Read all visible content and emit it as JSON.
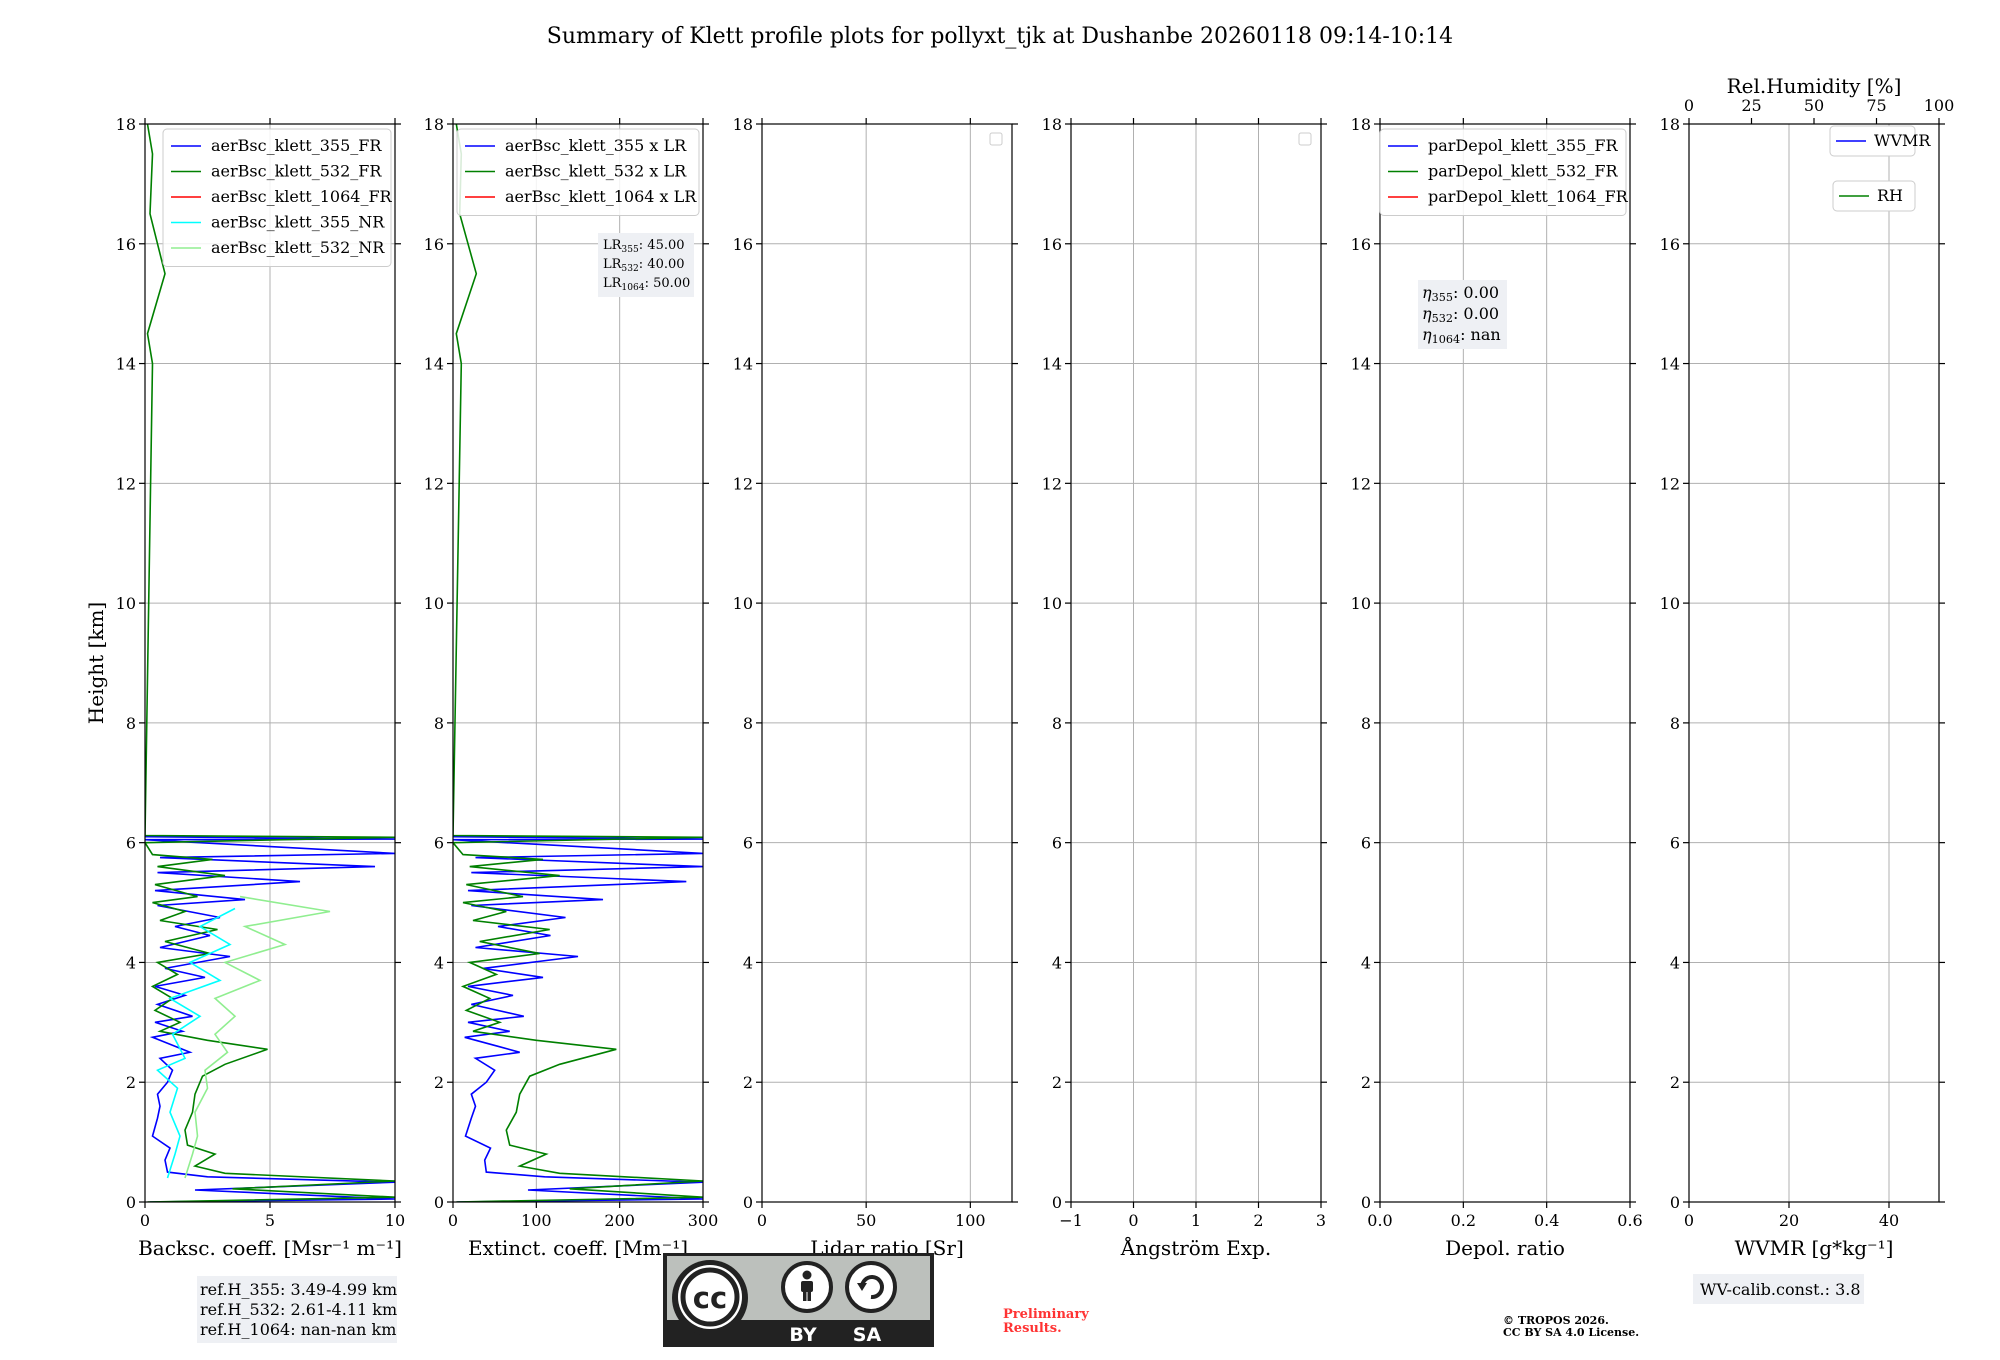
{
  "title": "Summary of Klett profile plots for pollyxt_tjk at Dushanbe 20260118 09:14-10:14",
  "colors": {
    "b355": "#0000ff",
    "g532": "#008000",
    "r1064": "#ff0000",
    "c355nr": "#00ffff",
    "lg532nr": "#90ee90",
    "grid": "#b0b0b0",
    "box_bg": "#eef0f4",
    "prelim": "#ff0000"
  },
  "chart_data": [
    {
      "type": "line",
      "id": "backscatter",
      "xlabel": "Backsc. coeff. [Msr⁻¹ m⁻¹]",
      "ylabel": "Height [km]",
      "xlim": [
        0,
        10
      ],
      "ylim": [
        0,
        18
      ],
      "xticks": [
        "0",
        "5",
        "10"
      ],
      "yticks": [
        "0",
        "2",
        "4",
        "6",
        "8",
        "10",
        "12",
        "14",
        "16",
        "18"
      ],
      "grid": true,
      "legend_position": "top-right",
      "series": [
        {
          "name": "aerBsc_klett_355_FR",
          "color_key": "b355",
          "points": [
            [
              0.2,
              0.0
            ],
            [
              10,
              0.05
            ],
            [
              2.0,
              0.2
            ],
            [
              10,
              0.33
            ],
            [
              2.5,
              0.42
            ],
            [
              0.9,
              0.5
            ],
            [
              0.8,
              0.7
            ],
            [
              1.0,
              0.9
            ],
            [
              0.3,
              1.1
            ],
            [
              0.5,
              1.4
            ],
            [
              0.6,
              1.6
            ],
            [
              0.5,
              1.8
            ],
            [
              0.9,
              2.0
            ],
            [
              1.1,
              2.2
            ],
            [
              0.6,
              2.4
            ],
            [
              1.8,
              2.5
            ],
            [
              1.2,
              2.6
            ],
            [
              0.3,
              2.75
            ],
            [
              1.5,
              2.85
            ],
            [
              0.4,
              3.0
            ],
            [
              1.9,
              3.1
            ],
            [
              0.5,
              3.3
            ],
            [
              1.6,
              3.45
            ],
            [
              0.4,
              3.6
            ],
            [
              2.4,
              3.75
            ],
            [
              0.8,
              3.9
            ],
            [
              3.4,
              4.1
            ],
            [
              0.6,
              4.25
            ],
            [
              2.6,
              4.45
            ],
            [
              1.2,
              4.6
            ],
            [
              3.0,
              4.75
            ],
            [
              0.5,
              4.95
            ],
            [
              4.0,
              5.05
            ],
            [
              0.4,
              5.2
            ],
            [
              6.2,
              5.35
            ],
            [
              0.5,
              5.5
            ],
            [
              9.2,
              5.6
            ],
            [
              0.6,
              5.75
            ],
            [
              10,
              5.82
            ],
            [
              0,
              6.05
            ],
            [
              10,
              6.06
            ],
            [
              0,
              6.1
            ]
          ]
        },
        {
          "name": "aerBsc_klett_532_FR",
          "color_key": "g532",
          "points": [
            [
              0.1,
              0.0
            ],
            [
              10,
              0.08
            ],
            [
              3.5,
              0.22
            ],
            [
              10,
              0.35
            ],
            [
              3.2,
              0.48
            ],
            [
              2.0,
              0.6
            ],
            [
              2.8,
              0.8
            ],
            [
              1.7,
              0.95
            ],
            [
              1.6,
              1.2
            ],
            [
              1.9,
              1.5
            ],
            [
              2.0,
              1.8
            ],
            [
              2.3,
              2.1
            ],
            [
              3.2,
              2.3
            ],
            [
              4.9,
              2.55
            ],
            [
              2.5,
              2.7
            ],
            [
              0.6,
              2.85
            ],
            [
              1.4,
              3.0
            ],
            [
              0.4,
              3.2
            ],
            [
              1.1,
              3.4
            ],
            [
              0.3,
              3.6
            ],
            [
              1.3,
              3.8
            ],
            [
              0.5,
              4.0
            ],
            [
              2.6,
              4.15
            ],
            [
              0.8,
              4.35
            ],
            [
              2.9,
              4.55
            ],
            [
              0.6,
              4.7
            ],
            [
              1.6,
              4.85
            ],
            [
              0.3,
              5.0
            ],
            [
              2.1,
              5.1
            ],
            [
              0.4,
              5.3
            ],
            [
              3.2,
              5.45
            ],
            [
              0.5,
              5.6
            ],
            [
              2.7,
              5.72
            ],
            [
              0.3,
              5.8
            ],
            [
              0,
              6.0
            ],
            [
              10,
              6.09
            ],
            [
              0,
              6.12
            ],
            [
              0.3,
              14.0
            ],
            [
              0.1,
              14.5
            ],
            [
              0.8,
              15.5
            ],
            [
              0.2,
              16.5
            ],
            [
              0.3,
              17.5
            ],
            [
              0.1,
              18.0
            ]
          ]
        },
        {
          "name": "aerBsc_klett_1064_FR",
          "color_key": "r1064",
          "points": []
        },
        {
          "name": "aerBsc_klett_355_NR",
          "color_key": "c355nr",
          "points": [
            [
              0.9,
              0.4
            ],
            [
              1.2,
              0.8
            ],
            [
              1.4,
              1.1
            ],
            [
              1.0,
              1.5
            ],
            [
              1.3,
              1.9
            ],
            [
              0.5,
              2.2
            ],
            [
              1.6,
              2.4
            ],
            [
              1.1,
              2.8
            ],
            [
              2.2,
              3.1
            ],
            [
              1.0,
              3.4
            ],
            [
              3.0,
              3.7
            ],
            [
              1.8,
              4.0
            ],
            [
              3.4,
              4.3
            ],
            [
              2.2,
              4.6
            ],
            [
              3.6,
              4.9
            ]
          ]
        },
        {
          "name": "aerBsc_klett_532_NR",
          "color_key": "lg532nr",
          "points": [
            [
              1.6,
              0.4
            ],
            [
              1.9,
              0.8
            ],
            [
              2.1,
              1.1
            ],
            [
              2.0,
              1.5
            ],
            [
              2.5,
              1.9
            ],
            [
              2.4,
              2.2
            ],
            [
              3.3,
              2.5
            ],
            [
              2.8,
              2.8
            ],
            [
              3.6,
              3.1
            ],
            [
              2.8,
              3.4
            ],
            [
              4.6,
              3.7
            ],
            [
              3.2,
              4.0
            ],
            [
              5.6,
              4.3
            ],
            [
              4.0,
              4.6
            ],
            [
              7.4,
              4.85
            ],
            [
              3.8,
              5.1
            ]
          ]
        }
      ],
      "info_box": [
        "ref.H_355: 3.49-4.99 km",
        "ref.H_532: 2.61-4.11 km",
        "ref.H_1064: nan-nan km"
      ]
    },
    {
      "type": "line",
      "id": "extinction",
      "xlabel": "Extinct. coeff. [Mm⁻¹]",
      "xlim": [
        0,
        300
      ],
      "ylim": [
        0,
        18
      ],
      "xticks": [
        "0",
        "100",
        "200",
        "300"
      ],
      "yticks": [
        "0",
        "2",
        "4",
        "6",
        "8",
        "10",
        "12",
        "14",
        "16",
        "18"
      ],
      "grid": true,
      "legend_position": "top-right",
      "series": [
        {
          "name": "aerBsc_klett_355 x LR",
          "color_key": "b355",
          "points": [
            [
              5,
              0.0
            ],
            [
              300,
              0.05
            ],
            [
              90,
              0.2
            ],
            [
              300,
              0.33
            ],
            [
              110,
              0.42
            ],
            [
              40,
              0.5
            ],
            [
              38,
              0.7
            ],
            [
              45,
              0.9
            ],
            [
              15,
              1.1
            ],
            [
              22,
              1.4
            ],
            [
              27,
              1.6
            ],
            [
              22,
              1.8
            ],
            [
              40,
              2.0
            ],
            [
              50,
              2.2
            ],
            [
              27,
              2.4
            ],
            [
              80,
              2.5
            ],
            [
              54,
              2.6
            ],
            [
              14,
              2.75
            ],
            [
              68,
              2.85
            ],
            [
              18,
              3.0
            ],
            [
              85,
              3.1
            ],
            [
              22,
              3.3
            ],
            [
              72,
              3.45
            ],
            [
              18,
              3.6
            ],
            [
              108,
              3.75
            ],
            [
              36,
              3.9
            ],
            [
              150,
              4.1
            ],
            [
              27,
              4.25
            ],
            [
              117,
              4.45
            ],
            [
              54,
              4.6
            ],
            [
              135,
              4.75
            ],
            [
              22,
              4.95
            ],
            [
              180,
              5.05
            ],
            [
              18,
              5.2
            ],
            [
              280,
              5.35
            ],
            [
              22,
              5.5
            ],
            [
              300,
              5.6
            ],
            [
              27,
              5.75
            ],
            [
              300,
              5.82
            ],
            [
              0,
              6.05
            ],
            [
              300,
              6.06
            ],
            [
              0,
              6.1
            ]
          ]
        },
        {
          "name": "aerBsc_klett_532 x LR",
          "color_key": "g532",
          "points": [
            [
              4,
              0.0
            ],
            [
              300,
              0.08
            ],
            [
              140,
              0.22
            ],
            [
              300,
              0.35
            ],
            [
              128,
              0.48
            ],
            [
              80,
              0.6
            ],
            [
              112,
              0.8
            ],
            [
              68,
              0.95
            ],
            [
              64,
              1.2
            ],
            [
              76,
              1.5
            ],
            [
              80,
              1.8
            ],
            [
              92,
              2.1
            ],
            [
              128,
              2.3
            ],
            [
              196,
              2.55
            ],
            [
              100,
              2.7
            ],
            [
              24,
              2.85
            ],
            [
              56,
              3.0
            ],
            [
              16,
              3.2
            ],
            [
              44,
              3.4
            ],
            [
              12,
              3.6
            ],
            [
              52,
              3.8
            ],
            [
              20,
              4.0
            ],
            [
              104,
              4.15
            ],
            [
              32,
              4.35
            ],
            [
              116,
              4.55
            ],
            [
              24,
              4.7
            ],
            [
              64,
              4.85
            ],
            [
              12,
              5.0
            ],
            [
              84,
              5.1
            ],
            [
              16,
              5.3
            ],
            [
              128,
              5.45
            ],
            [
              20,
              5.6
            ],
            [
              108,
              5.72
            ],
            [
              12,
              5.8
            ],
            [
              0,
              6.0
            ],
            [
              300,
              6.09
            ],
            [
              0,
              6.12
            ],
            [
              10,
              14.0
            ],
            [
              4,
              14.5
            ],
            [
              28,
              15.5
            ],
            [
              8,
              16.5
            ],
            [
              10,
              17.5
            ],
            [
              4,
              18.0
            ]
          ]
        },
        {
          "name": "aerBsc_klett_1064 x LR",
          "color_key": "r1064",
          "points": []
        }
      ],
      "info_lines": [
        {
          "base": "LR",
          "sub": "355",
          "value": ": 45.00"
        },
        {
          "base": "LR",
          "sub": "532",
          "value": ": 40.00"
        },
        {
          "base": "LR",
          "sub": "1064",
          "value": ": 50.00"
        }
      ]
    },
    {
      "type": "line",
      "id": "lidar-ratio",
      "xlabel": "Lidar ratio [Sr]",
      "xlim": [
        0,
        120
      ],
      "ylim": [
        0,
        18
      ],
      "xticks": [
        "0",
        "50",
        "100"
      ],
      "yticks": [
        "0",
        "2",
        "4",
        "6",
        "8",
        "10",
        "12",
        "14",
        "16",
        "18"
      ],
      "grid": true,
      "legend_position": "top-right",
      "series": []
    },
    {
      "type": "line",
      "id": "angstrom",
      "xlabel": "Ångström Exp.",
      "xlim": [
        -1,
        3
      ],
      "ylim": [
        0,
        18
      ],
      "xticks": [
        "−1",
        "0",
        "1",
        "2",
        "3"
      ],
      "yticks": [
        "0",
        "2",
        "4",
        "6",
        "8",
        "10",
        "12",
        "14",
        "16",
        "18"
      ],
      "grid": true,
      "legend_position": "top-right",
      "series": []
    },
    {
      "type": "line",
      "id": "depol",
      "xlabel": "Depol. ratio",
      "xlim": [
        0,
        0.6
      ],
      "ylim": [
        0,
        18
      ],
      "xticks": [
        "0.0",
        "0.2",
        "0.4",
        "0.6"
      ],
      "yticks": [
        "0",
        "2",
        "4",
        "6",
        "8",
        "10",
        "12",
        "14",
        "16",
        "18"
      ],
      "grid": true,
      "legend_position": "top-right",
      "series": [
        {
          "name": "parDepol_klett_355_FR",
          "color_key": "b355",
          "points": []
        },
        {
          "name": "parDepol_klett_532_FR",
          "color_key": "g532",
          "points": []
        },
        {
          "name": "parDepol_klett_1064_FR",
          "color_key": "r1064",
          "points": []
        }
      ],
      "info_lines": [
        {
          "base": "η",
          "sub": "355",
          "value": ": 0.00"
        },
        {
          "base": "η",
          "sub": "532",
          "value": ": 0.00"
        },
        {
          "base": "η",
          "sub": "1064",
          "value": ": nan"
        }
      ]
    },
    {
      "type": "line",
      "id": "wvmr",
      "xlabel": "WVMR [g*kg⁻¹]",
      "xlim": [
        0,
        50
      ],
      "ylim": [
        0,
        18
      ],
      "xticks": [
        "0",
        "20",
        "40"
      ],
      "yticks": [
        "0",
        "2",
        "4",
        "6",
        "8",
        "10",
        "12",
        "14",
        "16",
        "18"
      ],
      "grid": true,
      "top_axis": {
        "label": "Rel.Humidity [%]",
        "xlim": [
          0,
          100
        ],
        "ticks": [
          "0",
          "25",
          "50",
          "75",
          "100"
        ]
      },
      "series": [
        {
          "name": "WVMR",
          "color_key": "b355",
          "points": []
        },
        {
          "name": "RH",
          "color_key": "g532",
          "points": []
        }
      ],
      "info_box": [
        "WV-calib.const.: 3.8"
      ]
    }
  ],
  "license": {
    "cc": "cc",
    "by": "BY",
    "sa": "SA"
  },
  "preliminary": [
    "Preliminary",
    "Results."
  ],
  "copyright": [
    "© TROPOS 2026.",
    "CC BY SA 4.0 License."
  ]
}
